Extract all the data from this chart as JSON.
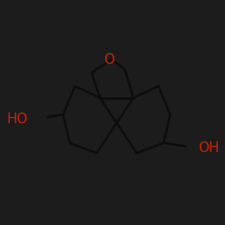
{
  "background_color": "#1a1a1a",
  "bond_color": "#000000",
  "line_color": "#111111",
  "oxygen_color": "#cc0000",
  "label_O": "O",
  "label_HO_left": "HO",
  "label_HO_right": "OH",
  "figsize": [
    2.5,
    2.5
  ],
  "dpi": 100,
  "bg_dark": "#181818",
  "line_dark": "#0a0a0a"
}
